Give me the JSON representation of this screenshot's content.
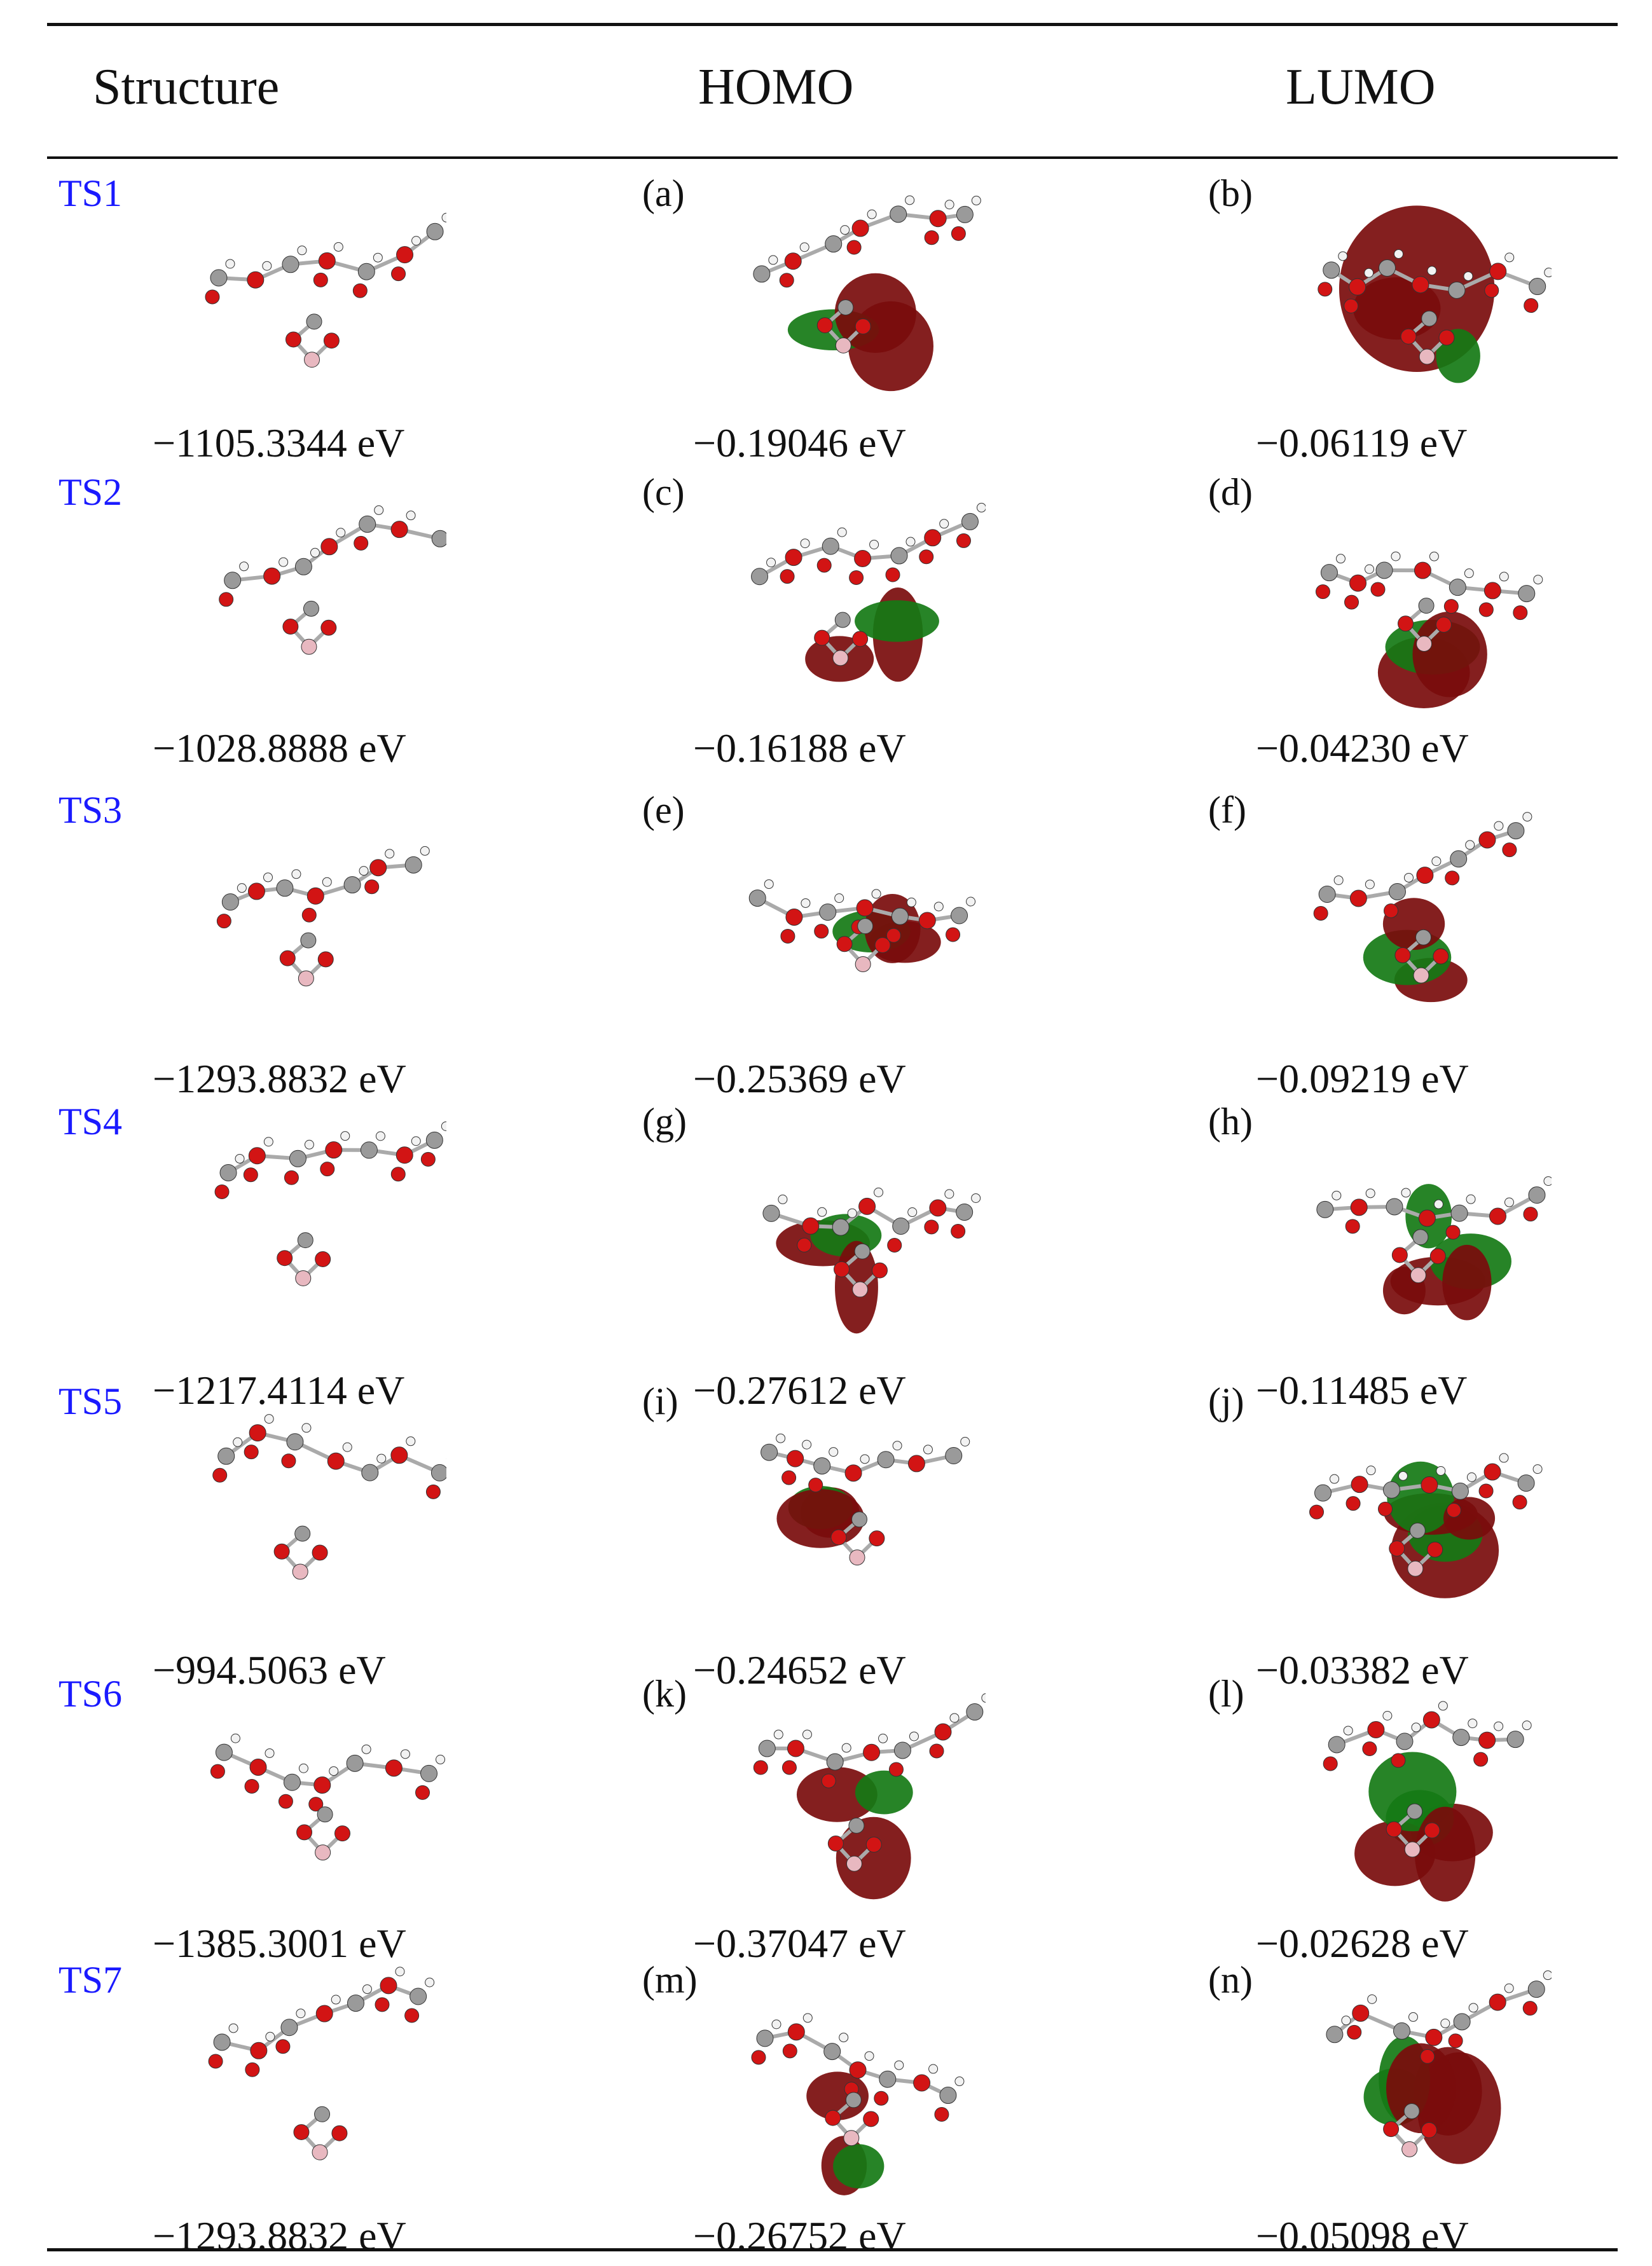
{
  "table": {
    "headers": [
      "Structure",
      "HOMO",
      "LUMO"
    ],
    "rows": [
      {
        "ts": "TS1",
        "energy": "−1105.3344 eV",
        "homo_label": "(a)",
        "homo_energy": "−0.19046 eV",
        "lumo_label": "(b)",
        "lumo_energy": "−0.06119 eV"
      },
      {
        "ts": "TS2",
        "energy": "−1028.8888 eV",
        "homo_label": "(c)",
        "homo_energy": "−0.16188 eV",
        "lumo_label": "(d)",
        "lumo_energy": "−0.04230 eV"
      },
      {
        "ts": "TS3",
        "energy": "−1293.8832 eV",
        "homo_label": "(e)",
        "homo_energy": "−0.25369 eV",
        "lumo_label": "(f)",
        "lumo_energy": "−0.09219 eV"
      },
      {
        "ts": "TS4",
        "energy": "−1217.4114 eV",
        "homo_label": "(g)",
        "homo_energy": "−0.27612 eV",
        "lumo_label": "(h)",
        "lumo_energy": "−0.11485 eV"
      },
      {
        "ts": "TS5",
        "energy": "−994.5063 eV",
        "homo_label": "(i)",
        "homo_energy": "−0.24652 eV",
        "lumo_label": "(j)",
        "lumo_energy": "−0.03382 eV"
      },
      {
        "ts": "TS6",
        "energy": "−1385.3001 eV",
        "homo_label": "(k)",
        "homo_energy": "−0.37047 eV",
        "lumo_label": "(l)",
        "lumo_energy": "−0.02628 eV"
      },
      {
        "ts": "TS7",
        "energy": "−1293.8832 eV",
        "homo_label": "(m)",
        "homo_energy": "−0.26752 eV",
        "lumo_label": "(n)",
        "lumo_energy": "−0.05098 eV"
      }
    ]
  },
  "colors": {
    "ts_label": "#1a1aff",
    "oxygen": "#d21414",
    "carbon": "#9a9a9a",
    "hydrogen": "#f2f2f2",
    "boron": "#e8b8c0",
    "orbital_positive": "#7a0c0c",
    "orbital_negative": "#157a15"
  }
}
